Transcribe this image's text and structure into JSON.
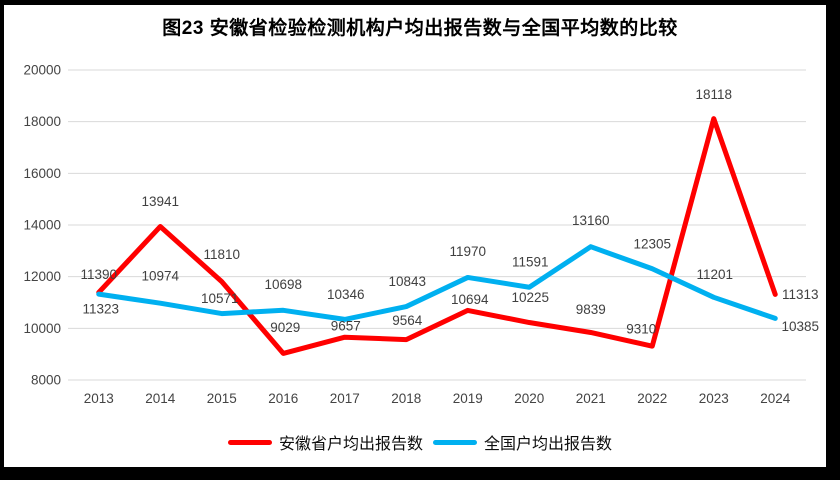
{
  "title": "图23 安徽省检验检测机构户均出报告数与全国平均数的比较",
  "chart_data": {
    "type": "line",
    "title": "图23 安徽省检验检测机构户均出报告数与全国平均数的比较",
    "categories": [
      "2013",
      "2014",
      "2015",
      "2016",
      "2017",
      "2018",
      "2019",
      "2020",
      "2021",
      "2022",
      "2023",
      "2024"
    ],
    "series": [
      {
        "name": "安徽省户均出报告数",
        "color": "#FF0000",
        "values": [
          11390,
          13941,
          11810,
          9029,
          9657,
          9564,
          10694,
          10225,
          9839,
          9310,
          18118,
          11313
        ],
        "label_offsets": [
          [
            0,
            -18
          ],
          [
            0,
            -25
          ],
          [
            0,
            -27
          ],
          [
            2,
            -26
          ],
          [
            1,
            -11
          ],
          [
            1,
            -19
          ],
          [
            2,
            -11
          ],
          [
            1,
            -25
          ],
          [
            0,
            -23
          ],
          [
            -11,
            -17
          ],
          [
            0,
            -24
          ],
          [
            25,
            0
          ]
        ]
      },
      {
        "name": "全国户均出报告数",
        "color": "#00B0F0",
        "values": [
          11323,
          10974,
          10571,
          10698,
          10346,
          10843,
          11970,
          11591,
          13160,
          12305,
          11201,
          10385
        ],
        "label_offsets": [
          [
            2,
            15
          ],
          [
            0,
            -27
          ],
          [
            -2,
            -15
          ],
          [
            0,
            -26
          ],
          [
            1,
            -25
          ],
          [
            1,
            -25
          ],
          [
            0,
            -26
          ],
          [
            1,
            -25
          ],
          [
            0,
            -26
          ],
          [
            0,
            -25
          ],
          [
            1,
            -23
          ],
          [
            25,
            8
          ]
        ]
      }
    ],
    "ylim": [
      8000,
      20000
    ],
    "yticks": [
      8000,
      10000,
      12000,
      14000,
      16000,
      18000,
      20000
    ],
    "ytick_step": 2000,
    "grid": true,
    "gridline_color": "#D9D9D9",
    "axis_label_color": "#444444",
    "data_label_color": "#404040",
    "line_width": 5,
    "legend_position": "bottom"
  }
}
